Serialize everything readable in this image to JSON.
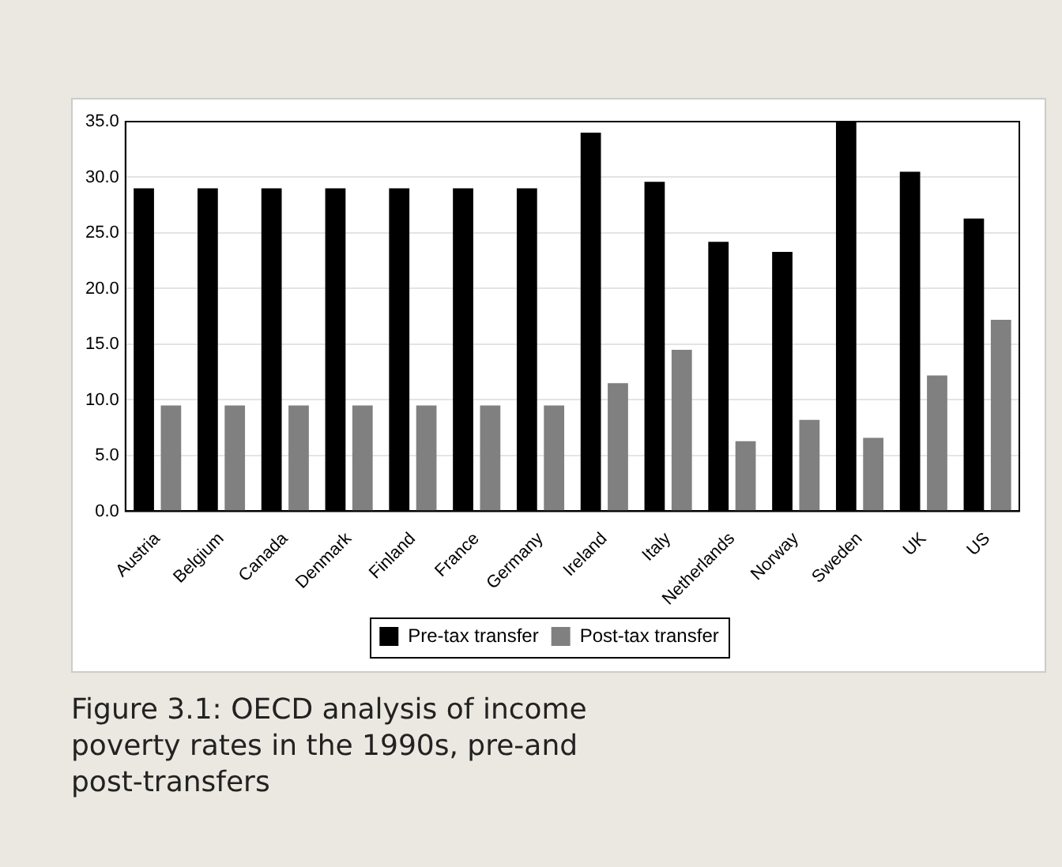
{
  "chart_data": {
    "type": "bar",
    "categories": [
      "Austria",
      "Belgium",
      "Canada",
      "Denmark",
      "Finland",
      "France",
      "Germany",
      "Ireland",
      "Italy",
      "Netherlands",
      "Norway",
      "Sweden",
      "UK",
      "US"
    ],
    "series": [
      {
        "name": "Pre-tax transfer",
        "color": "#000000",
        "values": [
          29.0,
          29.0,
          29.0,
          29.0,
          29.0,
          29.0,
          29.0,
          34.0,
          29.6,
          24.2,
          23.3,
          35.0,
          30.5,
          26.3
        ]
      },
      {
        "name": "Post-tax transfer",
        "color": "#808080",
        "values": [
          9.5,
          9.5,
          9.5,
          9.5,
          9.5,
          9.5,
          9.5,
          11.5,
          14.5,
          6.3,
          8.2,
          6.6,
          12.2,
          17.2
        ]
      }
    ],
    "ylim": [
      0,
      35
    ],
    "yticks": [
      {
        "value": 0,
        "label": "0.0"
      },
      {
        "value": 5,
        "label": "5.0"
      },
      {
        "value": 10,
        "label": "10.0"
      },
      {
        "value": 15,
        "label": "15.0"
      },
      {
        "value": 20,
        "label": "20.0"
      },
      {
        "value": 25,
        "label": "25.0"
      },
      {
        "value": 30,
        "label": "30.0"
      },
      {
        "value": 35,
        "label": "35.0"
      }
    ],
    "grid": "y",
    "legend": "bottom",
    "annotations": [
      "Figure 3.1: OECD analysis of income poverty rates in the 1990s, pre-and post-transfers"
    ]
  }
}
